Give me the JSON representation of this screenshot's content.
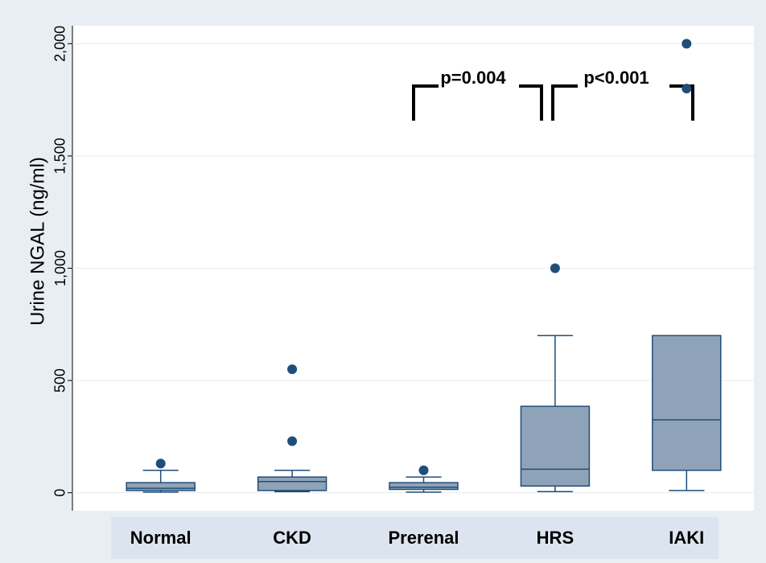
{
  "chart_data": {
    "type": "box",
    "y_label": "Urine NGAL (ng/ml)",
    "categories": [
      "Normal",
      "CKD",
      "Prerenal",
      "HRS",
      "IAKI"
    ],
    "boxes": [
      {
        "low": 3,
        "q1": 10,
        "median": 20,
        "q3": 45,
        "high": 100,
        "outliers": [
          130
        ]
      },
      {
        "low": 5,
        "q1": 10,
        "median": 50,
        "q3": 70,
        "high": 100,
        "outliers": [
          230,
          550
        ]
      },
      {
        "low": 3,
        "q1": 15,
        "median": 25,
        "q3": 45,
        "high": 70,
        "outliers": [
          100
        ]
      },
      {
        "low": 5,
        "q1": 30,
        "median": 105,
        "q3": 385,
        "high": 700,
        "outliers": [
          1000
        ]
      },
      {
        "low": 10,
        "q1": 100,
        "median": 325,
        "q3": 700,
        "high": 700,
        "outliers": [
          1800,
          2000
        ]
      }
    ],
    "color": "#8fa3b8",
    "edge_color": "#1f4e79",
    "ylim": [
      -80,
      2080
    ],
    "yticks": [
      0,
      500,
      {
        "value": 1000,
        "label": "1,000"
      },
      {
        "value": 1500,
        "label": "1,500"
      },
      {
        "value": 2000,
        "label": "2,000"
      }
    ],
    "grid": true,
    "annotations": [
      "p=0.004",
      "p<0.001"
    ]
  }
}
